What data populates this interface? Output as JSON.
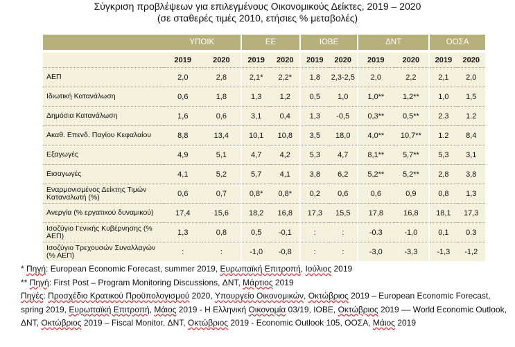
{
  "title": {
    "line1": "Σύγκριση προβλέψεων για επιλεγμένους Οικονομικούς Δείκτες, 2019 – 2020",
    "line2": "(σε σταθερές τιμές 2010, ετήσιες % μεταβολές)"
  },
  "table": {
    "groups": [
      "ΥΠΟΙΚ",
      "ΕΕ",
      "ΙΟΒΕ",
      "ΔΝΤ",
      "ΟΟΣΑ"
    ],
    "years": [
      "2019",
      "2020",
      "2019",
      "2020",
      "2019",
      "2020",
      "2019",
      "2020",
      "2019",
      "2020"
    ],
    "rows": [
      {
        "label": "ΑΕΠ",
        "values": [
          "2,0",
          "2,8",
          "2,1*",
          "2,2*",
          "1,8",
          "2,3-2,5",
          "2,0",
          "2,2",
          "2,1",
          "2,0"
        ]
      },
      {
        "label": "Ιδιωτική Κατανάλωση",
        "values": [
          "0,6",
          "1,8",
          "1,3",
          "1,2",
          "0,5",
          "1,0",
          "1,0**",
          "1,2**",
          "1,0",
          "1,5"
        ]
      },
      {
        "label": "Δημόσια Κατανάλωση",
        "values": [
          "1,6",
          "0,6",
          "3,1",
          "0,4",
          "1,3",
          "-0,5",
          "0,3**",
          "0,5**",
          "2.3",
          "1.2"
        ]
      },
      {
        "label": "Ακαθ. Επενδ. Παγίου Κεφαλαίου",
        "values": [
          "8,8",
          "13,4",
          "10,1",
          "10,8",
          "3,5",
          "18,0",
          "4,0**",
          "10,7**",
          "1.2",
          "8,4"
        ]
      },
      {
        "label": "Εξαγωγές",
        "values": [
          "4,9",
          "5,1",
          "4,7",
          "4,2",
          "5,3",
          "4,7",
          "8,1**",
          "5,7**",
          "5,3",
          "3,1"
        ]
      },
      {
        "label": "Εισαγωγές",
        "values": [
          "4,1",
          "5,2",
          "5,7",
          "4,1",
          "3,8",
          "6,2",
          "5,2**",
          "5,2**",
          "2,8",
          "3,8"
        ]
      },
      {
        "label": "Εναρμονισμένος Δείκτης Τιμών Καταναλωτή (%)",
        "values": [
          "0,6",
          "0,7",
          "0,8*",
          "0,8*",
          "0,2",
          "0,6",
          "0,6",
          "0,9",
          "0,8",
          "1,3"
        ]
      },
      {
        "label": "Ανεργία (% εργατικού δυναμικού)",
        "values": [
          "17,4",
          "15,6",
          "18,2",
          "16,8",
          "17,3",
          "15,5",
          "17,8",
          "16,8",
          "18,1",
          "17,3"
        ]
      },
      {
        "label": "Ισοζύγιο Γενικής Κυβέρνησης (% ΑΕΠ)",
        "values": [
          "1,3",
          "0,8",
          "0,5",
          "-0,1",
          ":",
          ":",
          "-0.3",
          "-1,0",
          "0,1",
          "0.3"
        ]
      },
      {
        "label": "Ισοζύγιο Τρεχουσών Συναλλαγών (% ΑΕΠ)",
        "values": [
          ":",
          ":",
          "-1,0",
          "-0,8",
          ":",
          ":",
          "-3,0",
          "-3,3",
          "-1,3",
          "-1,2"
        ]
      }
    ]
  },
  "notes": {
    "n1": {
      "a": "* ",
      "b": "Πηγή",
      "c": ": European Economic Forecast, summer 2019, ",
      "d": "Ευρωπαϊκή Επιτροπή",
      "e": ", ",
      "f": "Ιούλιος",
      "g": " 2019"
    },
    "n2": {
      "a": "** ",
      "b": "Πηγή",
      "c": ": First Post – Program Monitoring Discussions, ΔΝΤ, ",
      "d": "Μάρτιος",
      "e": " 2019"
    },
    "n3": {
      "a": "Πηγές",
      "b": ": ",
      "c": "Προσχέδιο Κρατικού Προϋπολογισμού",
      "d": " 2020, ",
      "e": "Υπουργείο Οικονομικών",
      "f": ", ",
      "g": "Οκτώβριος",
      "h": " 2019  – European Economic Forecast, spring 2019, ",
      "i": "Ευρωπαϊκή Επιτροπή",
      "j": ", ",
      "k": "Μάιος",
      "l": " 2019 - Η Ελληνική ",
      "m": "Οικονομία",
      "n": " 03/19, ΙΟΒΕ, ",
      "o": "Οκτώβριος",
      "p": " 2019 –– World Economic Outlook, ΔΝΤ, ",
      "q": "Οκτώβριος",
      "r": " 2019 – Fiscal Monitor, ΔΝΤ, ",
      "s": "Οκτώβριος",
      "t": " 2019 - Economic Outlook 105, ΟΟΣΑ, ",
      "u": "Μάιος",
      "v": " 2019"
    }
  }
}
